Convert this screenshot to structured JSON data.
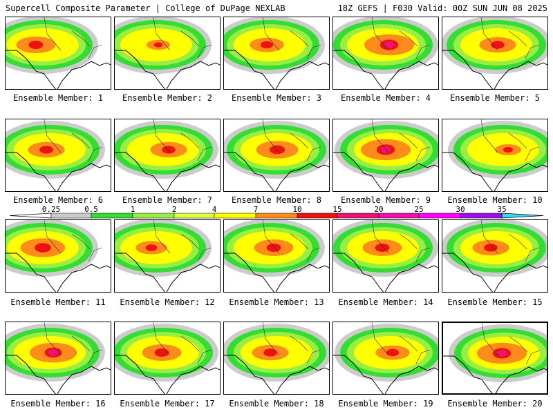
{
  "header": {
    "left": "Supercell Composite Parameter | College of DuPage NEXLAB",
    "right": "18Z GEFS | F030 Valid: 00Z SUN JUN 08 2025"
  },
  "members": [
    {
      "label": "Ensemble Member: 1",
      "intensity": 0.75
    },
    {
      "label": "Ensemble Member: 2",
      "intensity": 0.45
    },
    {
      "label": "Ensemble Member: 3",
      "intensity": 0.65
    },
    {
      "label": "Ensemble Member: 4",
      "intensity": 0.95
    },
    {
      "label": "Ensemble Member: 5",
      "intensity": 0.7
    },
    {
      "label": "Ensemble Member: 6",
      "intensity": 0.7
    },
    {
      "label": "Ensemble Member: 7",
      "intensity": 0.7
    },
    {
      "label": "Ensemble Member: 8",
      "intensity": 0.8
    },
    {
      "label": "Ensemble Member: 9",
      "intensity": 0.95
    },
    {
      "label": "Ensemble Member: 10",
      "intensity": 0.5
    },
    {
      "label": "Ensemble Member: 11",
      "intensity": 0.85
    },
    {
      "label": "Ensemble Member: 12",
      "intensity": 0.6
    },
    {
      "label": "Ensemble Member: 13",
      "intensity": 0.75
    },
    {
      "label": "Ensemble Member: 14",
      "intensity": 0.75
    },
    {
      "label": "Ensemble Member: 15",
      "intensity": 0.7
    },
    {
      "label": "Ensemble Member: 16",
      "intensity": 0.9
    },
    {
      "label": "Ensemble Member: 17",
      "intensity": 0.75
    },
    {
      "label": "Ensemble Member: 18",
      "intensity": 0.7
    },
    {
      "label": "Ensemble Member: 19",
      "intensity": 0.65
    },
    {
      "label": "Ensemble Member: 20",
      "intensity": 0.95
    }
  ],
  "legend": {
    "ticks": [
      "0.25",
      "0.5",
      "1",
      "2",
      "4",
      "7",
      "10",
      "15",
      "20",
      "25",
      "30",
      "35"
    ],
    "colors": [
      "#cccccc",
      "#33dd33",
      "#99ee44",
      "#ddff44",
      "#ffff00",
      "#ff8c1a",
      "#ee1111",
      "#ee1177",
      "#ee11aa",
      "#ff00ff",
      "#9911ee",
      "#bb66dd",
      "#33ddee"
    ]
  }
}
